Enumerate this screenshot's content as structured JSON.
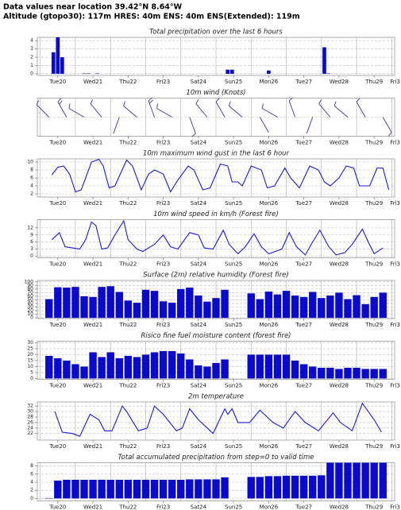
{
  "header": {
    "line1": "Data values near location 39.42°N 8.64°W",
    "line2": "Altitude (gtopo30): 117m HRES: 40m ENS: 40m ENS(Extended): 119m"
  },
  "chart_data": [
    {
      "type": "bar",
      "title": "Total precipitation over the last 6 hours",
      "color": "#0a0acc",
      "grid": true,
      "x": [
        9,
        12,
        15,
        30,
        33,
        39,
        128,
        131,
        156,
        194,
        197
      ],
      "values": [
        2.6,
        4.4,
        2.0,
        0.05,
        0.05,
        0.05,
        0.5,
        0.5,
        0.4,
        3.2,
        0.05
      ],
      "xlim": [
        -2,
        242
      ],
      "ylim": [
        -0.2,
        4.4
      ],
      "yticks": [
        0,
        1,
        2,
        3,
        4
      ],
      "xgrid": [
        0,
        24,
        48,
        72,
        96,
        120,
        144,
        168,
        192,
        216,
        240
      ],
      "xticks": [
        {
          "value": 12,
          "label": "Tue20"
        },
        {
          "value": 36,
          "label": "Wed21"
        },
        {
          "value": 60,
          "label": "Thu22"
        },
        {
          "value": 84,
          "label": "Fri23"
        },
        {
          "value": 108,
          "label": "Sat24"
        },
        {
          "value": 132,
          "label": "Sun25",
          "color": "#e02020"
        },
        {
          "value": 156,
          "label": "Mon26"
        },
        {
          "value": 180,
          "label": "Tue27"
        },
        {
          "value": 204,
          "label": "Wed28"
        },
        {
          "value": 228,
          "label": "Thu29"
        },
        {
          "value": 252,
          "label": "Fri3"
        }
      ]
    },
    {
      "type": "barbs",
      "title": "10m wind (Knots)",
      "color": "#3a3a9a",
      "grid": true,
      "x": [
        6,
        18,
        30,
        42,
        54,
        66,
        78,
        90,
        102,
        114,
        126,
        138,
        150,
        162,
        174,
        186,
        198,
        210,
        222,
        234
      ],
      "direction": [
        315,
        330,
        300,
        320,
        200,
        310,
        340,
        300,
        160,
        320,
        330,
        310,
        150,
        300,
        340,
        200,
        320,
        310,
        330,
        150
      ],
      "speed": [
        4,
        8,
        5,
        7,
        2,
        6,
        8,
        5,
        3,
        6,
        7,
        5,
        2,
        5,
        7,
        2,
        6,
        5,
        6,
        3
      ],
      "xlim": [
        -2,
        242
      ],
      "xgrid": [
        0,
        24,
        48,
        72,
        96,
        120,
        144,
        168,
        192,
        216,
        240
      ],
      "xticks": [
        {
          "value": 12,
          "label": "Tue20"
        },
        {
          "value": 36,
          "label": "Wed21"
        },
        {
          "value": 60,
          "label": "Thu22"
        },
        {
          "value": 84,
          "label": "Fri23"
        },
        {
          "value": 108,
          "label": "Sat24"
        },
        {
          "value": 132,
          "label": "Sun25",
          "color": "#e02020"
        },
        {
          "value": 156,
          "label": "Mon26"
        },
        {
          "value": 180,
          "label": "Tue27"
        },
        {
          "value": 204,
          "label": "Wed28"
        },
        {
          "value": 228,
          "label": "Thu29"
        },
        {
          "value": 252,
          "label": "Fri3"
        }
      ]
    },
    {
      "type": "line",
      "title": "10m maximum wind gust in the last 6 hour",
      "color": "#1a1ae0",
      "grid": true,
      "x": [
        8,
        12,
        16,
        20,
        24,
        28,
        35,
        40,
        43,
        47,
        51,
        59,
        63,
        69,
        74,
        78,
        84,
        89,
        94,
        101,
        105,
        111,
        116,
        123,
        128,
        131,
        135,
        138,
        144,
        151,
        155,
        160,
        167,
        171,
        177,
        184,
        190,
        194,
        198,
        204,
        209,
        214,
        218,
        225,
        230,
        234,
        238
      ],
      "values": [
        6.8,
        8.7,
        9,
        7,
        2.5,
        3,
        10,
        10.7,
        9,
        3.5,
        4,
        10.5,
        9,
        3,
        7,
        8,
        7,
        2.5,
        5.5,
        9,
        8,
        3,
        3.5,
        9.5,
        9,
        5,
        5,
        4,
        9,
        8,
        3.5,
        4,
        8.5,
        6,
        3.5,
        9,
        8,
        5,
        4,
        6,
        9,
        8.5,
        4,
        4,
        8.5,
        8.5,
        3
      ],
      "xlim": [
        -2,
        242
      ],
      "ylim": [
        1.2,
        10.8
      ],
      "yticks": [
        2,
        4,
        6,
        8,
        10
      ],
      "xgrid": [
        0,
        24,
        48,
        72,
        96,
        120,
        144,
        168,
        192,
        216,
        240
      ],
      "xticks": [
        {
          "value": 12,
          "label": "Tue20"
        },
        {
          "value": 36,
          "label": "Wed21"
        },
        {
          "value": 60,
          "label": "Thu22"
        },
        {
          "value": 84,
          "label": "Fri23"
        },
        {
          "value": 108,
          "label": "Sat24"
        },
        {
          "value": 132,
          "label": "Sun25",
          "color": "#e02020"
        },
        {
          "value": 156,
          "label": "Mon26"
        },
        {
          "value": 180,
          "label": "Tue27"
        },
        {
          "value": 204,
          "label": "Wed28"
        },
        {
          "value": 228,
          "label": "Thu29"
        },
        {
          "value": 252,
          "label": "Fri3"
        }
      ]
    },
    {
      "type": "line",
      "title": "10m wind speed in km/h (Forest fire)",
      "color": "#1a1ae0",
      "grid": true,
      "x": [
        8,
        13,
        17,
        22,
        27,
        31,
        35,
        38,
        42,
        46,
        51,
        57,
        60,
        66,
        70,
        78,
        84,
        89,
        94,
        102,
        108,
        112,
        118,
        125,
        129,
        135,
        140,
        146,
        151,
        156,
        165,
        170,
        175,
        181,
        186,
        191,
        197,
        202,
        208,
        213,
        220,
        224,
        228,
        234
      ],
      "values": [
        7,
        10,
        4,
        3.5,
        3,
        7,
        14.5,
        13,
        3,
        3.5,
        9,
        15,
        7,
        3,
        2,
        5,
        9,
        4,
        3,
        10,
        9,
        3.5,
        3,
        11,
        5,
        1,
        4,
        9.5,
        4,
        1,
        3,
        10,
        4,
        0.5,
        6,
        11,
        4,
        0.5,
        1.5,
        5,
        11.5,
        6,
        1,
        3.5
      ],
      "xlim": [
        -2,
        242
      ],
      "ylim": [
        -0.7,
        15.5
      ],
      "yticks": [
        0,
        3,
        6,
        9,
        12
      ],
      "xgrid": [
        0,
        24,
        48,
        72,
        96,
        120,
        144,
        168,
        192,
        216,
        240
      ],
      "xticks": [
        {
          "value": 12,
          "label": "Tue20"
        },
        {
          "value": 36,
          "label": "Wed21"
        },
        {
          "value": 60,
          "label": "Thu22"
        },
        {
          "value": 84,
          "label": "Fri23"
        },
        {
          "value": 108,
          "label": "Sat24"
        },
        {
          "value": 132,
          "label": "Sun25",
          "color": "#e02020"
        },
        {
          "value": 156,
          "label": "Mon26"
        },
        {
          "value": 180,
          "label": "Tue27"
        },
        {
          "value": 204,
          "label": "Wed28"
        },
        {
          "value": 228,
          "label": "Thu29"
        },
        {
          "value": 252,
          "label": "Fri3"
        }
      ]
    },
    {
      "type": "bar",
      "title": "Surface (2m) relative humidity (Forest fire)",
      "color": "#0a0acc",
      "grid": true,
      "x": [
        6,
        12,
        18,
        24,
        30,
        36,
        42,
        48,
        54,
        60,
        66,
        72,
        78,
        84,
        90,
        96,
        102,
        108,
        114,
        120,
        126,
        144,
        150,
        156,
        162,
        168,
        174,
        180,
        186,
        192,
        198,
        204,
        210,
        216,
        222,
        228,
        234
      ],
      "values": [
        52,
        85,
        84,
        86,
        60,
        58,
        86,
        88,
        72,
        48,
        42,
        78,
        75,
        46,
        42,
        80,
        84,
        62,
        45,
        55,
        78,
        68,
        52,
        73,
        65,
        75,
        62,
        58,
        72,
        55,
        62,
        70,
        52,
        63,
        38,
        58,
        70
      ],
      "xlim": [
        -2,
        242
      ],
      "ylim": [
        -2,
        104
      ],
      "yticks": [
        0,
        10,
        20,
        30,
        40,
        50,
        60,
        70,
        80,
        90,
        100
      ],
      "xgrid": [
        0,
        24,
        48,
        72,
        96,
        120,
        144,
        168,
        192,
        216,
        240
      ],
      "xticks": [
        {
          "value": 12,
          "label": "Tue20"
        },
        {
          "value": 36,
          "label": "Wed21"
        },
        {
          "value": 60,
          "label": "Thu22"
        },
        {
          "value": 84,
          "label": "Fri23"
        },
        {
          "value": 108,
          "label": "Sat24"
        },
        {
          "value": 132,
          "label": "Sun25",
          "color": "#e02020"
        },
        {
          "value": 156,
          "label": "Mon26"
        },
        {
          "value": 180,
          "label": "Tue27"
        },
        {
          "value": 204,
          "label": "Wed28"
        },
        {
          "value": 228,
          "label": "Thu29"
        },
        {
          "value": 252,
          "label": "Fri3"
        }
      ]
    },
    {
      "type": "bar",
      "title": "Risico fine fuel moisture content (forest fire)",
      "color": "#0a0acc",
      "grid": true,
      "x": [
        6,
        12,
        18,
        24,
        30,
        36,
        42,
        48,
        54,
        60,
        66,
        72,
        78,
        84,
        90,
        96,
        102,
        108,
        114,
        120,
        126,
        144,
        150,
        156,
        162,
        168,
        174,
        180,
        186,
        192,
        198,
        204,
        210,
        216,
        222,
        228,
        234
      ],
      "values": [
        19,
        17,
        15,
        12,
        10,
        22,
        18,
        22,
        17,
        19,
        18,
        20,
        22,
        23,
        23,
        21,
        16,
        11,
        10,
        13,
        16,
        20,
        20,
        20,
        20,
        20,
        15,
        12,
        10,
        9,
        9,
        8,
        9,
        9,
        8,
        8,
        8
      ],
      "xlim": [
        -2,
        242
      ],
      "ylim": [
        -0.7,
        31.3
      ],
      "yticks": [
        0,
        5,
        10,
        15,
        20,
        25,
        30
      ],
      "xgrid": [
        0,
        24,
        48,
        72,
        96,
        120,
        144,
        168,
        192,
        216,
        240
      ],
      "xticks": [
        {
          "value": 12,
          "label": "Tue20"
        },
        {
          "value": 36,
          "label": "Wed21"
        },
        {
          "value": 60,
          "label": "Thu22"
        },
        {
          "value": 84,
          "label": "Fri23"
        },
        {
          "value": 108,
          "label": "Sat24"
        },
        {
          "value": 132,
          "label": "Sun25",
          "color": "#e02020"
        },
        {
          "value": 156,
          "label": "Mon26"
        },
        {
          "value": 180,
          "label": "Tue27"
        },
        {
          "value": 204,
          "label": "Wed28"
        },
        {
          "value": 228,
          "label": "Thu29"
        },
        {
          "value": 252,
          "label": "Fri3"
        }
      ]
    },
    {
      "type": "line",
      "title": "2m temperature",
      "color": "#1a1ae0",
      "grid": true,
      "x": [
        10,
        15,
        22,
        27,
        34,
        40,
        44,
        49,
        56,
        59,
        67,
        73,
        78,
        84,
        93,
        97,
        102,
        108,
        118,
        126,
        128,
        131,
        135,
        143,
        150,
        159,
        166,
        174,
        181,
        190,
        200,
        205,
        213,
        220,
        228,
        233
      ],
      "values": [
        30,
        22.5,
        22,
        21,
        29,
        27,
        23,
        23,
        32,
        30,
        23,
        24,
        32,
        29,
        23,
        24,
        31,
        27,
        22,
        31,
        29,
        31,
        26,
        26,
        30.5,
        26,
        24,
        30,
        26,
        23,
        29.5,
        26,
        23,
        33,
        27,
        22.5
      ],
      "xlim": [
        -2,
        242
      ],
      "ylim": [
        19.6,
        33.5
      ],
      "yticks": [
        22,
        24,
        26,
        28,
        30,
        32
      ],
      "xgrid": [
        0,
        24,
        48,
        72,
        96,
        120,
        144,
        168,
        192,
        216,
        240
      ],
      "xticks": [
        {
          "value": 12,
          "label": "Tue20"
        },
        {
          "value": 36,
          "label": "Wed21"
        },
        {
          "value": 60,
          "label": "Thu22"
        },
        {
          "value": 84,
          "label": "Fri23"
        },
        {
          "value": 108,
          "label": "Sat24"
        },
        {
          "value": 132,
          "label": "Sun25",
          "color": "#e02020"
        },
        {
          "value": 156,
          "label": "Mon26"
        },
        {
          "value": 180,
          "label": "Tue27"
        },
        {
          "value": 204,
          "label": "Wed28"
        },
        {
          "value": 228,
          "label": "Thu29"
        },
        {
          "value": 252,
          "label": "Fri3"
        }
      ]
    },
    {
      "type": "bar",
      "title": "Total accumulated precipitation from step=0 to valid time",
      "color": "#0a0acc",
      "grid": true,
      "x": [
        6,
        12,
        18,
        24,
        30,
        36,
        42,
        48,
        54,
        60,
        66,
        72,
        78,
        84,
        90,
        96,
        102,
        108,
        114,
        120,
        126,
        144,
        150,
        156,
        162,
        168,
        174,
        180,
        186,
        192,
        198,
        204,
        210,
        216,
        222,
        228,
        234
      ],
      "values": [
        0.1,
        4.4,
        4.6,
        4.6,
        4.6,
        4.6,
        4.6,
        4.6,
        4.6,
        4.6,
        4.6,
        4.6,
        4.6,
        4.6,
        4.6,
        4.6,
        4.7,
        4.7,
        4.7,
        4.7,
        5.2,
        5.3,
        5.3,
        5.5,
        5.5,
        5.6,
        5.6,
        5.6,
        5.6,
        5.7,
        8.8,
        8.8,
        8.8,
        8.8,
        8.8,
        8.8,
        8.8
      ],
      "xlim": [
        -2,
        242
      ],
      "ylim": [
        -0.6,
        8.8
      ],
      "yticks": [
        0,
        2,
        4,
        6,
        8
      ],
      "xgrid": [
        0,
        24,
        48,
        72,
        96,
        120,
        144,
        168,
        192,
        216,
        240
      ],
      "xticks": [
        {
          "value": 12,
          "label": "Tue20"
        },
        {
          "value": 36,
          "label": "Wed21"
        },
        {
          "value": 60,
          "label": "Thu22"
        },
        {
          "value": 84,
          "label": "Fri23"
        },
        {
          "value": 108,
          "label": "Sat24"
        },
        {
          "value": 132,
          "label": "Sun25",
          "color": "#e02020"
        },
        {
          "value": 156,
          "label": "Mon26"
        },
        {
          "value": 180,
          "label": "Tue27"
        },
        {
          "value": 204,
          "label": "Wed28"
        },
        {
          "value": 228,
          "label": "Thu29"
        },
        {
          "value": 252,
          "label": "Fri3"
        }
      ]
    }
  ]
}
